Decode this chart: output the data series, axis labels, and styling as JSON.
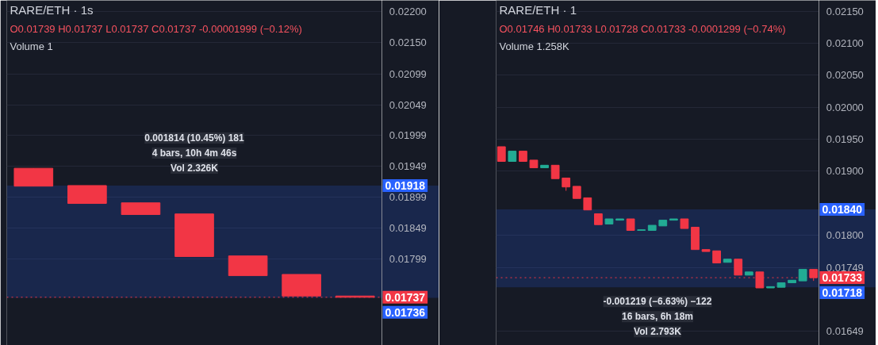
{
  "chart_data": [
    {
      "type": "candlestick",
      "title": "RARE/ETH · 1s",
      "categories": [
        null,
        null,
        null,
        null,
        null,
        null,
        null
      ],
      "ohlc": [
        [
          0.01946,
          0.01946,
          0.01917,
          0.01917
        ],
        [
          0.01918,
          0.01918,
          0.01889,
          0.01889
        ],
        [
          0.0189,
          0.0189,
          0.01871,
          0.01871
        ],
        [
          0.01872,
          0.01872,
          0.01803,
          0.01803
        ],
        [
          0.01804,
          0.01804,
          0.01772,
          0.01772
        ],
        [
          0.01774,
          0.01774,
          0.01739,
          0.01739
        ],
        [
          0.01739,
          0.01739,
          0.01737,
          0.01737
        ]
      ],
      "colors": [
        "#f23645",
        "#f23645",
        "#f23645",
        "#f23645",
        "#f23645",
        "#f23645",
        "#f23645"
      ],
      "ylim": [
        0.01659,
        0.02218
      ],
      "yticks": [
        0.01799,
        0.01849,
        0.01899,
        0.01949,
        0.01999,
        0.02049,
        0.02099,
        {
          "value": 0.0215,
          "label": "0.02150"
        },
        {
          "value": 0.022,
          "label": "0.02200"
        }
      ],
      "grid": "y",
      "tick_labels": "y",
      "ref_lines": [
        {
          "axis": "y",
          "value": 0.01737,
          "label": "0.01737",
          "color": "#f23645",
          "line_style": "dotted"
        }
      ],
      "bands": [
        {
          "axis": "y",
          "from": 0.01736,
          "to": 0.01918,
          "color": "#2962ff"
        }
      ],
      "annotations": [
        "O0.01739 H0.01737 L0.01737 C0.01737 -0.00001999 (−0.12%)",
        "Volume 1",
        "0.001814 (10.45%) 181",
        "4 bars, 10h 4m 46s",
        "Vol 2.326K",
        "0.01918",
        "0.01736"
      ]
    },
    {
      "type": "candlestick",
      "title": "RARE/ETH · 1",
      "categories": [
        null,
        null,
        null,
        null,
        null,
        null,
        null,
        null,
        null,
        null,
        null,
        null,
        null,
        null,
        null,
        null,
        null,
        null,
        null,
        null,
        null,
        null,
        null,
        null,
        null,
        null,
        null,
        null,
        null,
        null
      ],
      "ohlc": [
        [
          0.01938,
          0.01938,
          0.01915,
          0.01915
        ],
        [
          0.01915,
          0.01931,
          0.01915,
          0.01931
        ],
        [
          0.01931,
          0.01931,
          0.01915,
          0.01915
        ],
        [
          0.01917,
          0.01917,
          0.01905,
          0.01905
        ],
        [
          0.01905,
          0.01909,
          0.01905,
          0.01909
        ],
        [
          0.01909,
          0.01909,
          0.01888,
          0.01888
        ],
        [
          0.01889,
          0.01889,
          0.01869,
          0.01875
        ],
        [
          0.01876,
          0.01876,
          0.01857,
          0.01857
        ],
        [
          0.01858,
          0.01858,
          0.01839,
          0.01839
        ],
        [
          0.01833,
          0.01833,
          0.01816,
          0.01816
        ],
        [
          0.01817,
          0.01825,
          0.01817,
          0.01825
        ],
        [
          0.01823,
          0.01825,
          0.01823,
          0.01825
        ],
        [
          0.01825,
          0.01825,
          0.01807,
          0.01807
        ],
        [
          0.01807,
          0.01808,
          0.01807,
          0.01808
        ],
        [
          0.01807,
          0.01815,
          0.01807,
          0.01815
        ],
        [
          0.01814,
          0.01823,
          0.01814,
          0.01823
        ],
        [
          0.01823,
          0.01825,
          0.01823,
          0.01825
        ],
        [
          0.01825,
          0.01825,
          0.0181,
          0.0181
        ],
        [
          0.01812,
          0.01812,
          0.01777,
          0.01777
        ],
        [
          0.01777,
          0.01777,
          0.01774,
          0.01774
        ],
        [
          0.01775,
          0.01775,
          0.01756,
          0.01756
        ],
        [
          0.01757,
          0.01762,
          0.01757,
          0.01762
        ],
        [
          0.01762,
          0.01762,
          0.01737,
          0.01737
        ],
        [
          0.01737,
          0.01742,
          0.01737,
          0.01742
        ],
        [
          0.01742,
          0.01742,
          0.01717,
          0.01717
        ],
        [
          0.01717,
          0.01719,
          0.01717,
          0.01719
        ],
        [
          0.01718,
          0.01725,
          0.01718,
          0.01725
        ],
        [
          0.01725,
          0.01729,
          0.01725,
          0.01729
        ],
        [
          0.01728,
          0.01746,
          0.01728,
          0.01746
        ],
        [
          0.01746,
          0.01746,
          0.01728,
          0.01733
        ]
      ],
      "colors": [
        "#f23645",
        "#22ab94",
        "#f23645",
        "#f23645",
        "#22ab94",
        "#f23645",
        "#f23645",
        "#f23645",
        "#f23645",
        "#f23645",
        "#22ab94",
        "#22ab94",
        "#f23645",
        "#22ab94",
        "#22ab94",
        "#22ab94",
        "#22ab94",
        "#f23645",
        "#f23645",
        "#f23645",
        "#f23645",
        "#22ab94",
        "#f23645",
        "#22ab94",
        "#f23645",
        "#22ab94",
        "#22ab94",
        "#22ab94",
        "#22ab94",
        "#f23645"
      ],
      "ylim": [
        0.01627,
        0.02167
      ],
      "yticks": [
        0.01649,
        0.01749,
        {
          "value": 0.018,
          "label": "0.01800"
        },
        {
          "value": 0.019,
          "label": "0.01900"
        },
        {
          "value": 0.0195,
          "label": "0.01950"
        },
        {
          "value": 0.02,
          "label": "0.02000"
        },
        {
          "value": 0.0205,
          "label": "0.02050"
        },
        {
          "value": 0.021,
          "label": "0.02100"
        },
        {
          "value": 0.0215,
          "label": "0.02150"
        }
      ],
      "grid": "y",
      "tick_labels": "y",
      "ref_lines": [
        {
          "axis": "y",
          "value": 0.01733,
          "label": "0.01733",
          "color": "#f23645",
          "line_style": "dotted"
        }
      ],
      "bands": [
        {
          "axis": "y",
          "from": 0.01718,
          "to": 0.0184,
          "color": "#2962ff"
        }
      ],
      "annotations": [
        "O0.01746 H0.01733 L0.01728 C0.01733 -0.0001299 (−0.74%)",
        "Volume 1.258K",
        "-0.001219 (−6.63%) −122",
        "16 bars, 6h 18m",
        "Vol 2.793K",
        "0.01840",
        "0.01718"
      ]
    }
  ]
}
